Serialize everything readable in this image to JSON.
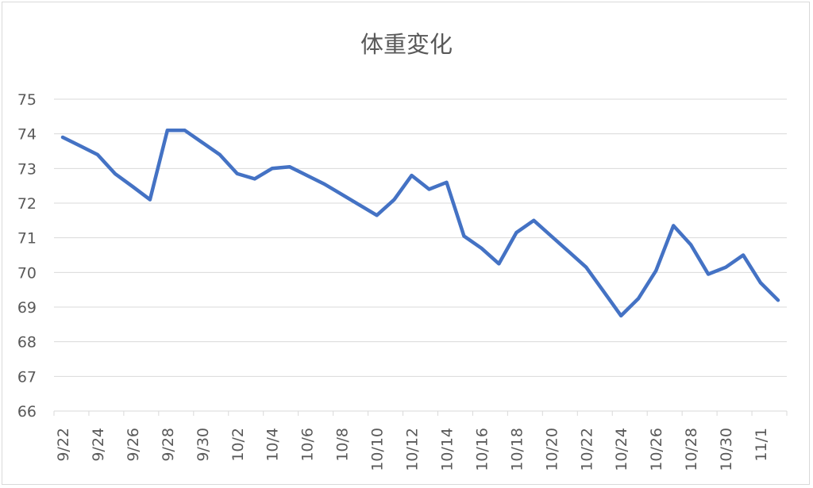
{
  "chart_data": {
    "type": "line",
    "title": "体重変化",
    "xlabel": "",
    "ylabel": "",
    "ylim": [
      66,
      75
    ],
    "yticks": [
      66,
      67,
      68,
      69,
      70,
      71,
      72,
      73,
      74,
      75
    ],
    "grid": true,
    "legend": "none",
    "colors": {
      "line": "#4472C4",
      "grid": "#d9d9d9",
      "text": "#595959"
    },
    "x_tick_labels": [
      "9/22",
      "9/24",
      "9/26",
      "9/28",
      "9/30",
      "10/2",
      "10/4",
      "10/6",
      "10/8",
      "10/10",
      "10/12",
      "10/14",
      "10/16",
      "10/18",
      "10/20",
      "10/22",
      "10/24",
      "10/26",
      "10/28",
      "10/30",
      "11/1"
    ],
    "dates": [
      "9/22",
      "9/23",
      "9/24",
      "9/25",
      "9/26",
      "9/27",
      "9/28",
      "9/29",
      "9/30",
      "10/1",
      "10/2",
      "10/3",
      "10/4",
      "10/5",
      "10/6",
      "10/7",
      "10/8",
      "10/9",
      "10/10",
      "10/11",
      "10/12",
      "10/13",
      "10/14",
      "10/15",
      "10/16",
      "10/17",
      "10/18",
      "10/19",
      "10/20",
      "10/21",
      "10/22",
      "10/23",
      "10/24",
      "10/25",
      "10/26",
      "10/27",
      "10/28",
      "10/29",
      "10/30",
      "10/31",
      "11/1",
      "11/2"
    ],
    "series": [
      {
        "values": [
          73.9,
          73.65,
          73.4,
          72.85,
          72.48,
          72.1,
          74.1,
          74.1,
          73.75,
          73.4,
          72.85,
          72.7,
          73.0,
          73.05,
          72.8,
          72.55,
          72.25,
          71.95,
          71.65,
          72.1,
          72.8,
          72.4,
          72.6,
          71.05,
          70.7,
          70.25,
          71.15,
          71.5,
          71.05,
          70.6,
          70.15,
          69.45,
          68.75,
          69.25,
          70.05,
          71.35,
          70.8,
          69.95,
          70.15,
          70.5,
          69.7,
          69.2
        ]
      }
    ]
  }
}
